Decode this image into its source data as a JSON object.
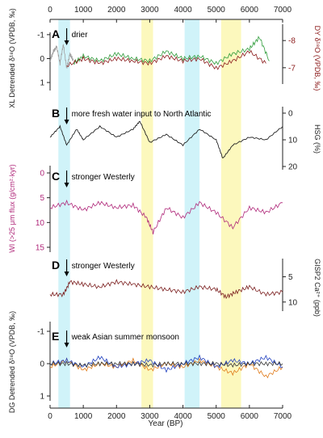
{
  "chart_data": {
    "type": "line",
    "xlabel": "Year (BP)",
    "xlim": [
      0,
      7000
    ],
    "x_ticks": [
      "0",
      "1000",
      "2000",
      "3000",
      "4000",
      "5000",
      "6000",
      "7000"
    ],
    "top_ticks": [
      "0",
      "1000",
      "2000",
      "3000",
      "4000",
      "5000",
      "6000",
      "7000"
    ],
    "bands": [
      {
        "from": 250,
        "to": 600,
        "color": "#c8f1f8"
      },
      {
        "from": 2750,
        "to": 3100,
        "color": "#fbf7b2"
      },
      {
        "from": 4050,
        "to": 4500,
        "color": "#c8f1f8"
      },
      {
        "from": 5150,
        "to": 5750,
        "color": "#fbf7b2"
      }
    ],
    "event_arrow_x": 500,
    "panels": [
      {
        "letter": "A",
        "annotation": "drier",
        "left_label": "XL Detrended δ¹⁸O (VPDB, ‰)",
        "right_label": "DY δ¹⁸O (VPDB, ‰)",
        "left_ticks": [
          "-1",
          "0",
          "1"
        ],
        "right_ticks": [
          "-8",
          "-7"
        ],
        "series": [
          {
            "color": "#a0a0a0",
            "x": [
              0,
              100,
              200,
              300,
              400,
              500,
              600,
              700
            ],
            "y": [
              0.1,
              -0.3,
              -0.5,
              0.2,
              -0.6,
              0.4,
              -0.2,
              0.1
            ]
          },
          {
            "color": "#2e9c3a",
            "x": [
              700,
              1000,
              1500,
              2000,
              2500,
              3000,
              3500,
              4000,
              4500,
              5000,
              5500,
              6000,
              6300,
              6600
            ],
            "y": [
              0.2,
              -0.1,
              0.1,
              -0.2,
              0.0,
              0.1,
              -0.3,
              0.0,
              -0.1,
              0.2,
              -0.2,
              -0.4,
              -0.9,
              0.1
            ]
          },
          {
            "color": "#8b1a1a",
            "x": [
              500,
              1000,
              1500,
              2000,
              2500,
              3000,
              3500,
              4000,
              4500,
              5000,
              5500,
              6000,
              6500
            ],
            "y": [
              0.3,
              0.0,
              0.2,
              0.0,
              0.1,
              0.2,
              -0.1,
              0.1,
              0.0,
              0.4,
              0.1,
              -0.3,
              0.2
            ]
          }
        ]
      },
      {
        "letter": "B",
        "annotation": "more fresh water input to North Atlantic",
        "left_label": "",
        "right_label": "HSG (%)",
        "left_ticks": [],
        "right_ticks": [
          "0",
          "10",
          "20"
        ],
        "series": [
          {
            "color": "#222222",
            "x": [
              0,
              300,
              500,
              800,
              1000,
              1500,
              2000,
              2500,
              2700,
              3000,
              3500,
              4000,
              4500,
              5000,
              5200,
              5500,
              6000,
              6500,
              7000
            ],
            "y": [
              9,
              5,
              12,
              6,
              10,
              5,
              9,
              6,
              3,
              11,
              8,
              12,
              6,
              10,
              17,
              12,
              9,
              10,
              5
            ]
          }
        ]
      },
      {
        "letter": "C",
        "annotation": "stronger Westerly",
        "left_label": "WI (>25 μm flux (g/cm²·kyr)",
        "right_label": "",
        "left_ticks": [
          "0",
          "5",
          "10",
          "15"
        ],
        "right_ticks": [],
        "series": [
          {
            "color": "#b0287a",
            "x": [
              0,
              500,
              1000,
              1500,
              2000,
              2500,
              2900,
              3100,
              3500,
              4000,
              4500,
              5000,
              5500,
              6000,
              6500,
              7000
            ],
            "y": [
              7,
              6,
              7.5,
              6,
              7,
              6.5,
              9,
              12,
              7,
              9,
              6,
              8,
              11,
              7,
              8,
              6
            ]
          }
        ]
      },
      {
        "letter": "D",
        "annotation": "stronger Westerly",
        "left_label": "",
        "right_label": "GISP2 Ca²⁺ (ppb)",
        "left_ticks": [],
        "right_ticks": [
          "5",
          "10"
        ],
        "series": [
          {
            "color": "#7a1d1d",
            "x": [
              0,
              400,
              600,
              1000,
              1500,
              2000,
              2500,
              3000,
              3500,
              4000,
              4500,
              5000,
              5300,
              5600,
              6000,
              6500,
              7000
            ],
            "y": [
              8.5,
              8.5,
              6,
              6.5,
              7,
              6,
              6.5,
              7,
              7.5,
              8,
              7,
              7.5,
              9,
              8,
              7,
              8.5,
              8
            ]
          }
        ]
      },
      {
        "letter": "E",
        "annotation": "weak Asian summer monsoon",
        "left_label": "DG Detrended δ¹⁸O (VPDB, ‰)",
        "right_label": "",
        "left_ticks": [
          "-1",
          "0",
          "1"
        ],
        "right_ticks": [],
        "series": [
          {
            "color": "#e07b1a",
            "x": [
              0,
              500,
              1000,
              1500,
              2000,
              2500,
              3000,
              3500,
              4000,
              4500,
              5000,
              5500,
              6000,
              6500,
              7000
            ],
            "y": [
              0.1,
              -0.1,
              0.2,
              0.0,
              0.1,
              -0.1,
              0.2,
              0.0,
              0.1,
              -0.1,
              0.1,
              0.3,
              0.0,
              0.4,
              0.1
            ]
          },
          {
            "color": "#1f3fbf",
            "x": [
              0,
              500,
              1000,
              1500,
              2000,
              2500,
              3000,
              3500,
              4000,
              4500,
              5000,
              5500,
              6000,
              6500,
              7000
            ],
            "y": [
              0.0,
              -0.1,
              0.1,
              -0.2,
              0.1,
              0.0,
              -0.1,
              0.2,
              0.0,
              -0.2,
              0.1,
              -0.1,
              0.0,
              -0.2,
              0.1
            ]
          },
          {
            "color": "#333333",
            "x": [
              0,
              500,
              1000,
              1500,
              2000,
              2500,
              3000,
              3500,
              4000,
              4500,
              5000,
              5500,
              6000,
              6500,
              7000
            ],
            "y": [
              0.0,
              0.0,
              0.05,
              0.0,
              0.0,
              0.0,
              0.05,
              0.0,
              0.0,
              0.0,
              0.0,
              0.05,
              0.0,
              0.0,
              0.0
            ]
          }
        ]
      }
    ]
  }
}
